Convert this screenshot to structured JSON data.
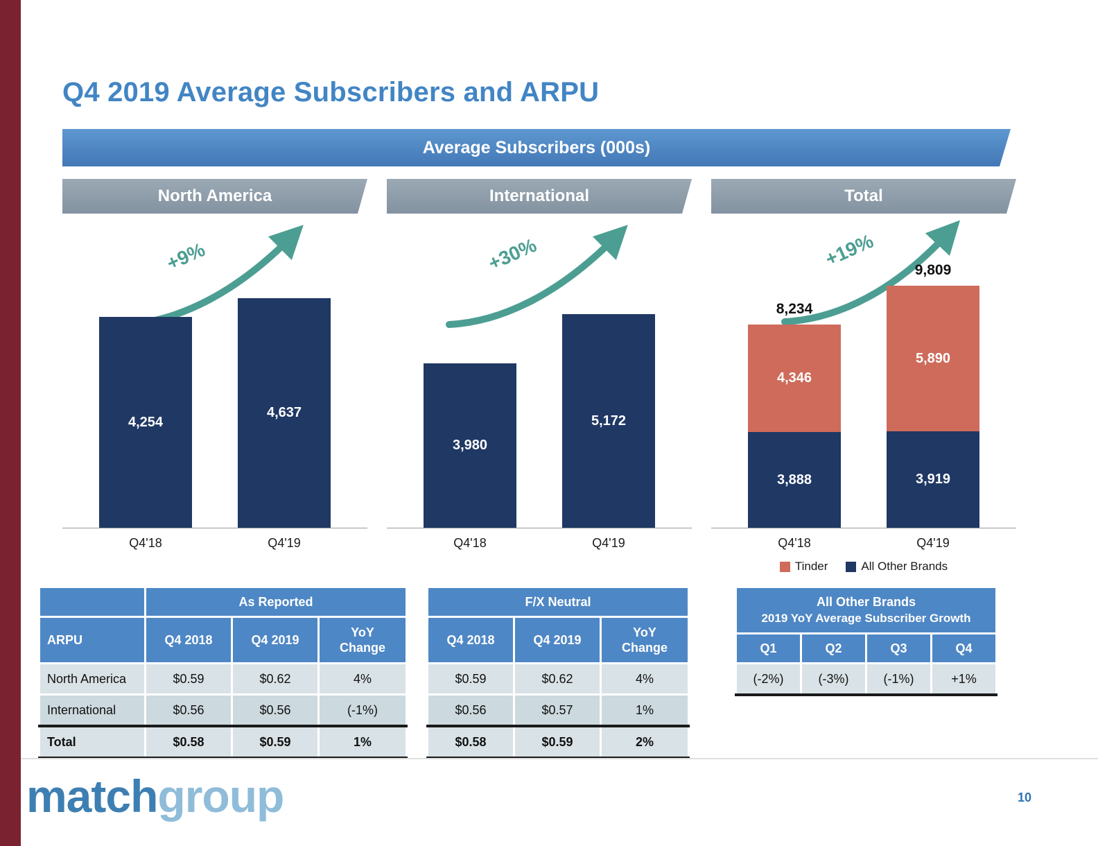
{
  "title": "Q4 2019 Average Subscribers and ARPU",
  "main_banner": "Average Subscribers (000s)",
  "colors": {
    "accent_stripe": "#7B2230",
    "title_blue": "#4285C4",
    "banner_blue": "#4E87C5",
    "banner_gray": "#8C9AA6",
    "bar_navy": "#1F3864",
    "bar_salmon": "#CE6B5B",
    "arrow_teal": "#4C9E92",
    "table_row_light": "#D9E2E6",
    "table_row_mid": "#CCD9DE"
  },
  "chart_data": [
    {
      "type": "bar",
      "title": "North America",
      "categories": [
        "Q4'18",
        "Q4'19"
      ],
      "values": [
        4254,
        4637
      ],
      "value_labels": [
        "4,254",
        "4,637"
      ],
      "growth_label": "+9%",
      "bar_color": "#1F3864"
    },
    {
      "type": "bar",
      "title": "International",
      "categories": [
        "Q4'18",
        "Q4'19"
      ],
      "values": [
        3980,
        5172
      ],
      "value_labels": [
        "3,980",
        "5,172"
      ],
      "growth_label": "+30%",
      "bar_color": "#1F3864"
    },
    {
      "type": "stacked-bar",
      "title": "Total",
      "categories": [
        "Q4'18",
        "Q4'19"
      ],
      "series": [
        {
          "name": "All Other Brands",
          "color": "#1F3864",
          "values": [
            3888,
            3919
          ],
          "value_labels": [
            "3,888",
            "3,919"
          ]
        },
        {
          "name": "Tinder",
          "color": "#CE6B5B",
          "values": [
            4346,
            5890
          ],
          "value_labels": [
            "4,346",
            "5,890"
          ]
        }
      ],
      "totals": [
        8234,
        9809
      ],
      "total_labels": [
        "8,234",
        "9,809"
      ],
      "growth_label": "+19%",
      "legend": [
        {
          "label": "Tinder",
          "color": "#CE6B5B"
        },
        {
          "label": "All Other Brands",
          "color": "#1F3864"
        }
      ]
    }
  ],
  "tables": {
    "as_reported": {
      "group_header": "As Reported",
      "col0_header": "ARPU",
      "columns": [
        "Q4 2018",
        "Q4 2019",
        "YoY Change"
      ],
      "rows": [
        {
          "label": "North America",
          "cells": [
            "$0.59",
            "$0.62",
            "4%"
          ]
        },
        {
          "label": "International",
          "cells": [
            "$0.56",
            "$0.56",
            "(-1%)"
          ]
        },
        {
          "label": "Total",
          "cells": [
            "$0.58",
            "$0.59",
            "1%"
          ],
          "bold": true
        }
      ]
    },
    "fx_neutral": {
      "group_header": "F/X Neutral",
      "columns": [
        "Q4 2018",
        "Q4 2019",
        "YoY Change"
      ],
      "rows": [
        {
          "cells": [
            "$0.59",
            "$0.62",
            "4%"
          ]
        },
        {
          "cells": [
            "$0.56",
            "$0.57",
            "1%"
          ]
        },
        {
          "cells": [
            "$0.58",
            "$0.59",
            "2%"
          ],
          "bold": true
        }
      ]
    },
    "other_brands_growth": {
      "title_line1": "All Other Brands",
      "title_line2": "2019 YoY Average Subscriber Growth",
      "columns": [
        "Q1",
        "Q2",
        "Q3",
        "Q4"
      ],
      "rows": [
        {
          "cells": [
            "(-2%)",
            "(-3%)",
            "(-1%)",
            "+1%"
          ]
        }
      ]
    }
  },
  "footer": {
    "logo_bold": "match",
    "logo_light": "group",
    "page_number": "10"
  }
}
